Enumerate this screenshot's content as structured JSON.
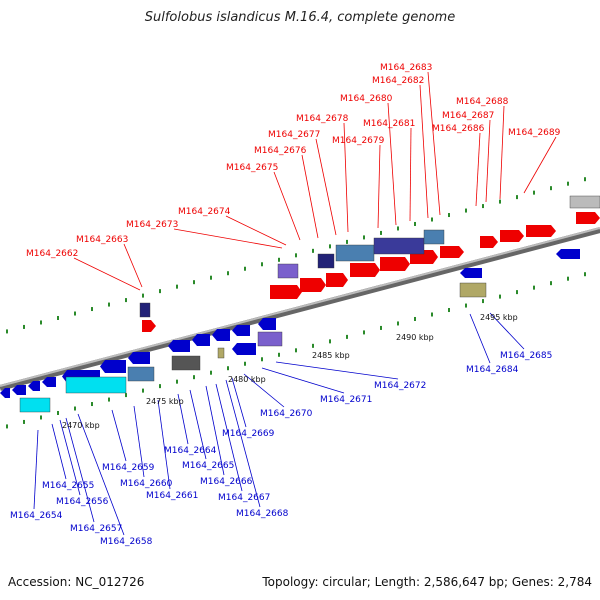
{
  "title": "Sulfolobus islandicus M.16.4, complete genome",
  "footer": {
    "accession": "Accession: NC_012726",
    "topology": "Topology: circular; Length: 2,586,647 bp; Genes: 2,784"
  },
  "colors": {
    "forward": "#ee0000",
    "reverse": "#0000cc",
    "backbone": "#888888",
    "tick": "#2a8a2a"
  },
  "ticks": [
    "2470 kbp",
    "2475 kbp",
    "2480 kbp",
    "2485 kbp",
    "2490 kbp",
    "2495 kbp"
  ],
  "forward_labels": [
    "M164_2662",
    "M164_2663",
    "M164_2673",
    "M164_2674",
    "M164_2675",
    "M164_2676",
    "M164_2677",
    "M164_2678",
    "M164_2679",
    "M164_2680",
    "M164_2681",
    "M164_2682",
    "M164_2683",
    "M164_2686",
    "M164_2687",
    "M164_2688",
    "M164_2689"
  ],
  "reverse_labels": [
    "M164_2654",
    "M164_2655",
    "M164_2656",
    "M164_2657",
    "M164_2658",
    "M164_2659",
    "M164_2660",
    "M164_2661",
    "M164_2664",
    "M164_2665",
    "M164_2666",
    "M164_2667",
    "M164_2668",
    "M164_2669",
    "M164_2670",
    "M164_2671",
    "M164_2672",
    "M164_2684",
    "M164_2685"
  ]
}
